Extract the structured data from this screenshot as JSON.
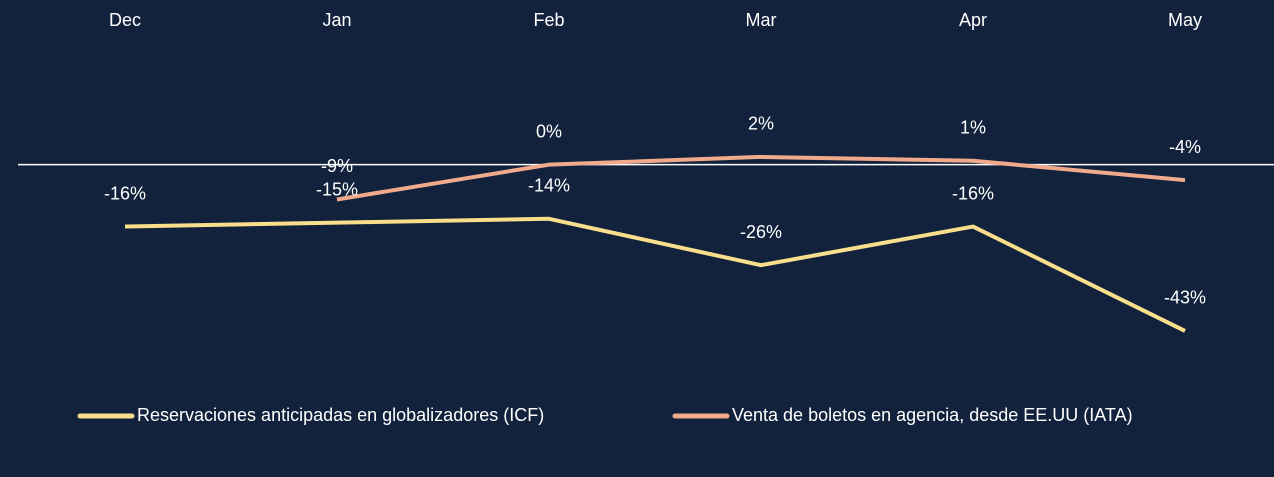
{
  "chart_data": {
    "type": "line",
    "categories": [
      "Dec",
      "Jan",
      "Feb",
      "Mar",
      "Apr",
      "May"
    ],
    "series": [
      {
        "name": "Reservaciones anticipadas en globalizadores (ICF)",
        "color": "#f9df8c",
        "values": [
          -16,
          -15,
          -14,
          -26,
          -16,
          -43
        ],
        "value_labels": [
          "-16%",
          "-15%",
          "-14%",
          "-26%",
          "-16%",
          "-43%"
        ]
      },
      {
        "name": "Venta de boletos en agencia, desde EE.UU (IATA)",
        "color": "#f1a98b",
        "values": [
          null,
          -9,
          0,
          2,
          1,
          -4
        ],
        "value_labels": [
          null,
          "-9%",
          "0%",
          "2%",
          "1%",
          "-4%"
        ]
      }
    ],
    "ylim": [
      -50,
      10
    ]
  }
}
